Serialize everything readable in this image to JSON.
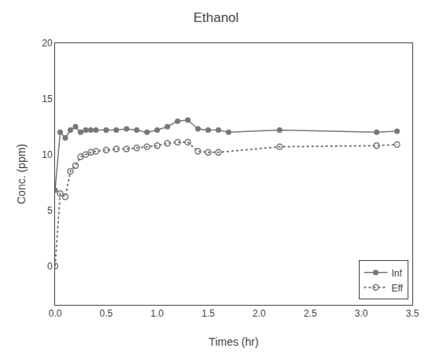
{
  "chart_data": {
    "type": "line",
    "title": "Ethanol",
    "xlabel": "Times (hr)",
    "ylabel": "Conc. (ppm)",
    "xlim": [
      0,
      3.5
    ],
    "ylim": [
      -3.5,
      20
    ],
    "xticks": [
      {
        "value": 0.0,
        "label": "0.0"
      },
      0.5,
      {
        "value": 1.0,
        "label": "1.0"
      },
      1.5,
      {
        "value": 2.0,
        "label": "2.0"
      },
      2.5,
      {
        "value": 3.0,
        "label": "3.0"
      },
      3.5
    ],
    "yticks": [
      0,
      5,
      10,
      15,
      20
    ],
    "grid": false,
    "legend": "lower right",
    "series": [
      {
        "name": "Inf",
        "color": "#777777",
        "marker": "circle",
        "line_style": "solid",
        "x": [
          0.0,
          0.05,
          0.1,
          0.15,
          0.2,
          0.25,
          0.3,
          0.35,
          0.4,
          0.5,
          0.6,
          0.7,
          0.8,
          0.9,
          1.0,
          1.1,
          1.2,
          1.3,
          1.4,
          1.5,
          1.6,
          1.7,
          2.2,
          3.15,
          3.35
        ],
        "values": [
          6.8,
          12.0,
          11.5,
          12.2,
          12.5,
          12.0,
          12.2,
          12.2,
          12.2,
          12.2,
          12.2,
          12.3,
          12.2,
          12.0,
          12.2,
          12.5,
          13.0,
          13.1,
          12.3,
          12.2,
          12.2,
          12.0,
          12.2,
          12.0,
          12.1
        ]
      },
      {
        "name": "Eff",
        "color": "#777777",
        "marker": "circle-open",
        "line_style": "dotted",
        "x": [
          0.0,
          0.05,
          0.1,
          0.15,
          0.2,
          0.25,
          0.3,
          0.35,
          0.4,
          0.5,
          0.6,
          0.7,
          0.8,
          0.9,
          1.0,
          1.1,
          1.2,
          1.3,
          1.4,
          1.5,
          1.6,
          2.2,
          3.15,
          3.35
        ],
        "values": [
          0.0,
          6.5,
          6.2,
          8.5,
          9.0,
          9.8,
          10.0,
          10.2,
          10.3,
          10.4,
          10.5,
          10.5,
          10.6,
          10.7,
          10.8,
          11.0,
          11.1,
          11.1,
          10.3,
          10.2,
          10.2,
          10.7,
          10.8,
          10.9
        ]
      }
    ]
  }
}
